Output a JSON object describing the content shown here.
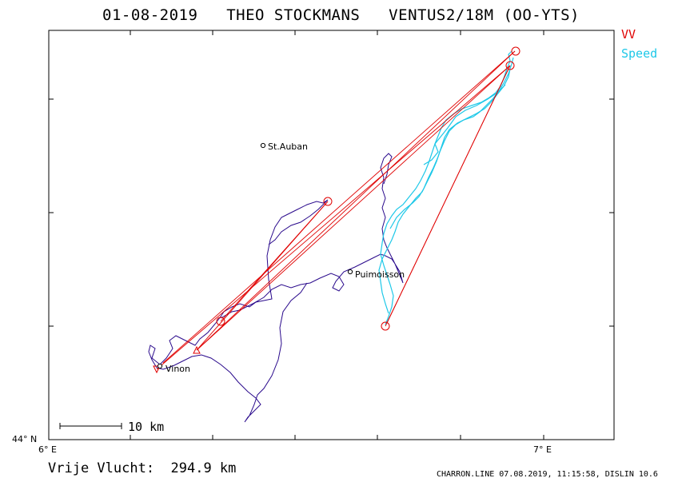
{
  "header": {
    "title": "01-08-2019   THEO STOCKMANS   VENTUS2/18M (OO-YTS)"
  },
  "legend": {
    "vv_label": "VV",
    "speed_label": "Speed",
    "vv_color": "#e00000",
    "speed_color": "#1ec8e8",
    "track_color": "#2a0a8c"
  },
  "places": [
    {
      "name": "St.Auban"
    },
    {
      "name": "Puimoisson"
    },
    {
      "name": "Vinon"
    }
  ],
  "axes": {
    "x_left": "6° E",
    "x_right": "7° E",
    "y_bottom": "44° N"
  },
  "scale_bar": {
    "label": "10 km"
  },
  "footer": {
    "distance": "Vrije Vlucht:  294.9 km",
    "credits": "CHARRON.LINE 07.08.2019, 11:15:58, DISLIN 10.6"
  }
}
